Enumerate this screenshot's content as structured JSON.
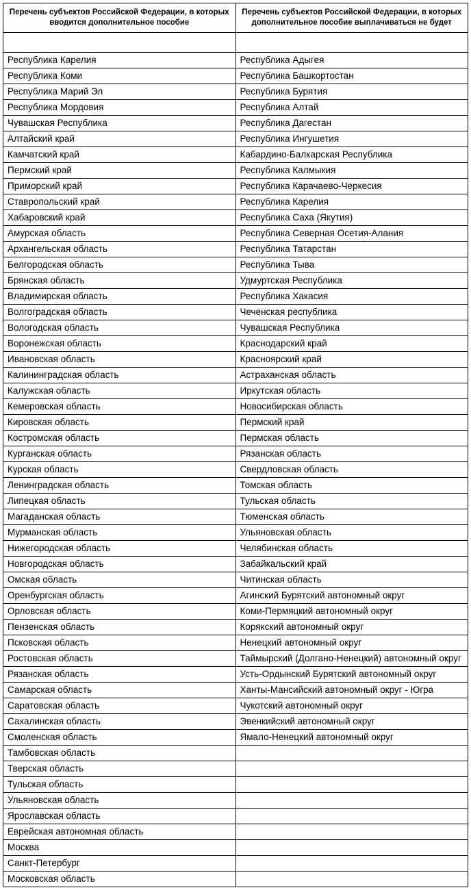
{
  "table": {
    "type": "table",
    "columns": [
      {
        "header": "Перечень субъектов Российской Федерации, в которых вводится дополнительное пособие",
        "width_pct": 50,
        "align": "left"
      },
      {
        "header": "Перечень субъектов Российской Федерации, в которых дополнительное пособие выплачиваться не будет",
        "width_pct": 50,
        "align": "left"
      }
    ],
    "header_fontsize": 11.5,
    "cell_fontsize": 13.5,
    "border_color": "#000000",
    "background_color": "#ffffff",
    "text_color": "#000000",
    "rows": [
      [
        "Республика Карелия",
        "Республика Адыгея"
      ],
      [
        "Республика Коми",
        "Республика Башкортостан"
      ],
      [
        "Республика Марий Эл",
        "Республика Бурятия"
      ],
      [
        "Республика Мордовия",
        "Республика Алтай"
      ],
      [
        "Чувашская Республика",
        "Республика Дагестан"
      ],
      [
        "Алтайский край",
        "Республика Ингушетия"
      ],
      [
        "Камчатский край",
        "Кабардино-Балкарская Республика"
      ],
      [
        "Пермский край",
        "Республика Калмыкия"
      ],
      [
        "Приморский край",
        "Республика Карачаево-Черкесия"
      ],
      [
        "Ставропольский край",
        "Республика Карелия"
      ],
      [
        "Хабаровский край",
        "Республика Саха (Якутия)"
      ],
      [
        "Амурская область",
        "Республика Северная Осетия-Алания"
      ],
      [
        "Архангельская область",
        "Республика Татарстан"
      ],
      [
        "Белгородская область",
        "Республика Тыва"
      ],
      [
        "Брянская область",
        "Удмуртская Республика"
      ],
      [
        "Владимирская область",
        "Республика Хакасия"
      ],
      [
        "Волгоградская область",
        "Чеченская республика"
      ],
      [
        "Вологодская область",
        "Чувашская Республика"
      ],
      [
        "Воронежская область",
        "Краснодарский край"
      ],
      [
        "Ивановская область",
        "Красноярский край"
      ],
      [
        "Калининградская область",
        "Астраханская область"
      ],
      [
        "Калужская область",
        "Иркутская область"
      ],
      [
        "Кемеровская область",
        "Новосибирская область"
      ],
      [
        "Кировская область",
        "Пермский край"
      ],
      [
        "Костромская область",
        "Пермская область"
      ],
      [
        "Курганская область",
        "Рязанская область"
      ],
      [
        "Курская область",
        "Свердловская область"
      ],
      [
        "Ленинградская область",
        "Томская область"
      ],
      [
        "Липецкая область",
        "Тульская область"
      ],
      [
        "Магаданская область",
        "Тюменская область"
      ],
      [
        "Мурманская область",
        "Ульяновская область"
      ],
      [
        "Нижегородская область",
        "Челябинская область"
      ],
      [
        "Новгородская область",
        "Забайкальский край"
      ],
      [
        "Омская область",
        "Читинская область"
      ],
      [
        "Оренбургская область",
        "Агинский Бурятский автономный округ"
      ],
      [
        "Орловская область",
        "Коми-Пермяцкий автономный округ"
      ],
      [
        "Пензенская область",
        "Корякский автономный округ"
      ],
      [
        "Псковская область",
        "Ненецкий автономный округ"
      ],
      [
        "Ростовская область",
        "Таймырский (Долгано-Ненецкий) автономный округ"
      ],
      [
        "Рязанская область",
        "Усть-Ордынский Бурятский автономный округ"
      ],
      [
        "Самарская область",
        "Ханты-Мансийский автономный округ - Югра"
      ],
      [
        "Саратовская область",
        "Чукотский автономный округ"
      ],
      [
        "Сахалинская область",
        "Эвенкийский автономный округ"
      ],
      [
        "Смоленская область",
        "Ямало-Ненецкий автономный округ"
      ],
      [
        "Тамбовская область",
        ""
      ],
      [
        "Тверская область",
        ""
      ],
      [
        "Тульская область",
        ""
      ],
      [
        "Ульяновская область",
        ""
      ],
      [
        "Ярославская область",
        ""
      ],
      [
        "Еврейская автономная область",
        ""
      ],
      [
        "Москва",
        ""
      ],
      [
        "Санкт-Петербург",
        ""
      ],
      [
        "Московская область",
        ""
      ]
    ]
  }
}
